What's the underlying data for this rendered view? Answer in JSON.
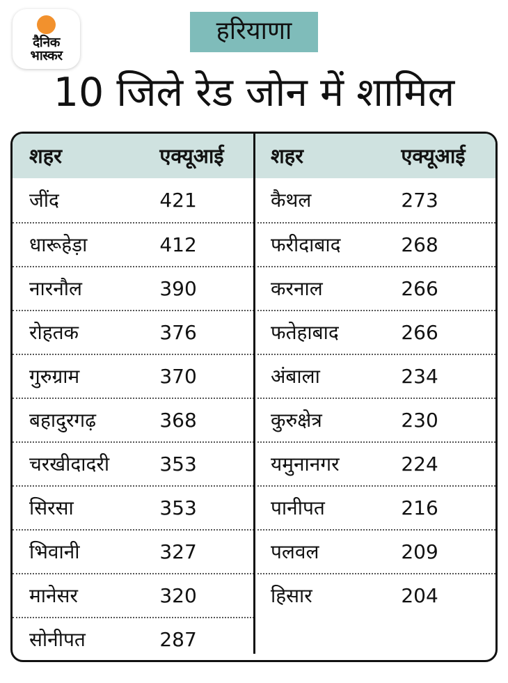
{
  "brand": {
    "logo_line1": "दैनिक",
    "logo_line2": "भास्कर"
  },
  "header": {
    "region_badge": "हरियाणा",
    "title": "10 जिले रेड जोन में शामिल"
  },
  "colors": {
    "badge_bg": "#7fbcba",
    "table_header_bg": "#cfe2e0",
    "logo_sun": "#f2912d",
    "border": "#111111"
  },
  "table": {
    "columns": [
      "शहर",
      "एक्यूआई"
    ],
    "left": [
      {
        "city": "जींद",
        "aqi": "421"
      },
      {
        "city": "धारूहेड़ा",
        "aqi": "412"
      },
      {
        "city": "नारनौल",
        "aqi": "390"
      },
      {
        "city": "रोहतक",
        "aqi": "376"
      },
      {
        "city": "गुरुग्राम",
        "aqi": "370"
      },
      {
        "city": "बहादुरगढ़",
        "aqi": "368"
      },
      {
        "city": "चरखीदादरी",
        "aqi": "353"
      },
      {
        "city": "सिरसा",
        "aqi": "353"
      },
      {
        "city": "भिवानी",
        "aqi": "327"
      },
      {
        "city": "मानेसर",
        "aqi": "320"
      },
      {
        "city": "सोनीपत",
        "aqi": "287"
      }
    ],
    "right": [
      {
        "city": "कैथल",
        "aqi": "273"
      },
      {
        "city": "फरीदाबाद",
        "aqi": "268"
      },
      {
        "city": "करनाल",
        "aqi": "266"
      },
      {
        "city": "फतेहाबाद",
        "aqi": "266"
      },
      {
        "city": "अंबाला",
        "aqi": "234"
      },
      {
        "city": "कुरुक्षेत्र",
        "aqi": "230"
      },
      {
        "city": "यमुनानगर",
        "aqi": "224"
      },
      {
        "city": "पानीपत",
        "aqi": "216"
      },
      {
        "city": "पलवल",
        "aqi": "209"
      },
      {
        "city": "हिसार",
        "aqi": "204"
      }
    ]
  },
  "chart_data": {
    "type": "table",
    "title": "10 जिले रेड जोन में शामिल",
    "region": "हरियाणा",
    "columns": [
      "शहर",
      "एक्यूआई"
    ],
    "rows": [
      [
        "जींद",
        421
      ],
      [
        "धारूहेड़ा",
        412
      ],
      [
        "नारनौल",
        390
      ],
      [
        "रोहतक",
        376
      ],
      [
        "गुरुग्राम",
        370
      ],
      [
        "बहादुरगढ़",
        368
      ],
      [
        "चरखीदादरी",
        353
      ],
      [
        "सिरसा",
        353
      ],
      [
        "भिवानी",
        327
      ],
      [
        "मानेसर",
        320
      ],
      [
        "सोनीपत",
        287
      ],
      [
        "कैथल",
        273
      ],
      [
        "फरीदाबाद",
        268
      ],
      [
        "करनाल",
        266
      ],
      [
        "फतेहाबाद",
        266
      ],
      [
        "अंबाला",
        234
      ],
      [
        "कुरुक्षेत्र",
        230
      ],
      [
        "यमुनानगर",
        224
      ],
      [
        "पानीपत",
        216
      ],
      [
        "पलवल",
        209
      ],
      [
        "हिसार",
        204
      ]
    ]
  }
}
